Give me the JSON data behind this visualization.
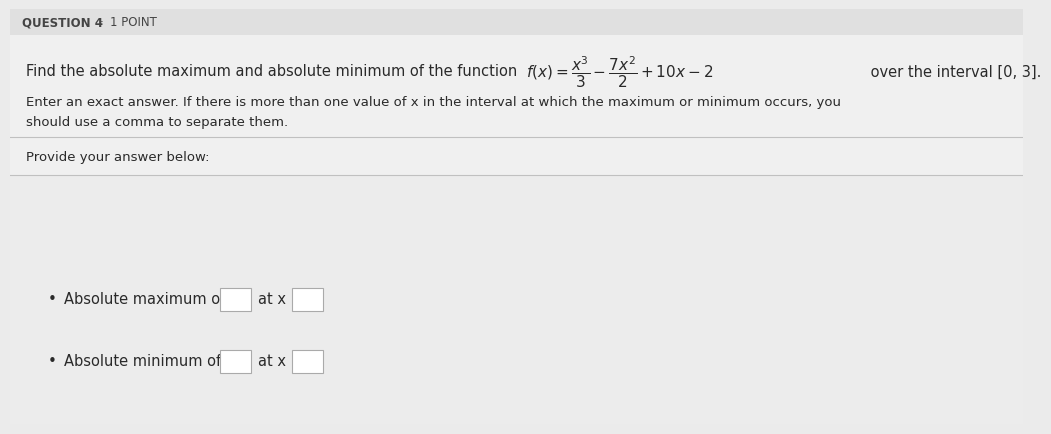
{
  "bg_color": "#ebebeb",
  "header_bg": "#e0e0e0",
  "content_bg": "#f0f0f0",
  "answer_bg": "#e8e8e8",
  "question_label": "QUESTION 4",
  "dot": "·",
  "points_label": "1 POINT",
  "main_text_part1": "Find the absolute maximum and absolute minimum of the function ",
  "main_text_part2": " over the interval [0, 3].",
  "sub_text_line1": "Enter an exact answer. If there is more than one value of x in the interval at which the maximum or minimum occurs, you",
  "sub_text_line2": "should use a comma to separate them.",
  "provide_label": "Provide your answer below:",
  "abs_max_label": "Absolute maximum of",
  "abs_min_label": "Absolute minimum of",
  "at_x_label": "at x =",
  "box_color": "#ffffff",
  "box_border": "#aaaaaa",
  "text_color": "#2a2a2a",
  "header_text_color": "#444444",
  "divider_color": "#c0c0c0",
  "bullet": "•",
  "header_font_size": 8.5,
  "body_font_size": 10.5,
  "small_font_size": 9.5
}
